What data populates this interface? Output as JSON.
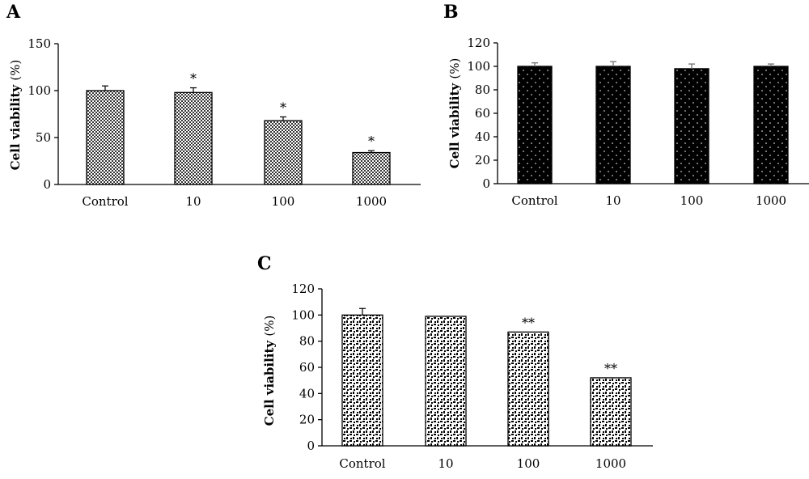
{
  "chart_data": [
    {
      "panel": "A",
      "type": "bar",
      "ylabel": "Cell viability",
      "yunit": "(%)",
      "ylim": [
        0,
        150
      ],
      "yticks": [
        0,
        50,
        100,
        150
      ],
      "categories": [
        "Control",
        "10",
        "100",
        "1000"
      ],
      "values": [
        100,
        98,
        68,
        34
      ],
      "errors": [
        5,
        5,
        4,
        2
      ],
      "significance": [
        "",
        "*",
        "*",
        "*"
      ],
      "grid": false,
      "pattern": "checker"
    },
    {
      "panel": "B",
      "type": "bar",
      "ylabel": "Cell viability",
      "yunit": "(%)",
      "ylim": [
        0,
        120
      ],
      "yticks": [
        0,
        20,
        40,
        60,
        80,
        100,
        120
      ],
      "categories": [
        "Control",
        "10",
        "100",
        "1000"
      ],
      "values": [
        100,
        100,
        98,
        100
      ],
      "errors": [
        3,
        4,
        4,
        2
      ],
      "significance": [
        "",
        "",
        "",
        ""
      ],
      "grid": false,
      "pattern": "dots"
    },
    {
      "panel": "C",
      "type": "bar",
      "ylabel": "Cell viability",
      "yunit": "(%)",
      "ylim": [
        0,
        120
      ],
      "yticks": [
        0,
        20,
        40,
        60,
        80,
        100,
        120
      ],
      "categories": [
        "Control",
        "10",
        "100",
        "1000"
      ],
      "values": [
        100,
        99,
        87,
        52
      ],
      "errors": [
        5,
        0,
        0,
        0
      ],
      "significance": [
        "",
        "",
        "**",
        "**"
      ],
      "grid": false,
      "pattern": "dashes"
    }
  ]
}
